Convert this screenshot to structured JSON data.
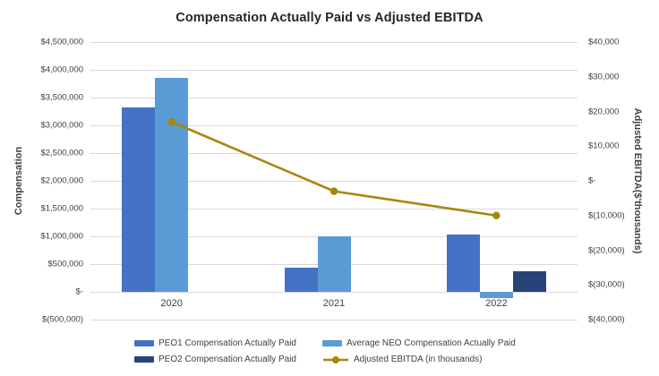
{
  "chart_data": {
    "type": "combo_bar_line",
    "title": "Compensation Actually Paid vs Adjusted EBITDA",
    "categories": [
      "2020",
      "2021",
      "2022"
    ],
    "bar_series": [
      {
        "name": "PEO1 Compensation Actually Paid",
        "color": "#4472C4",
        "axis": "left",
        "values": [
          3330000,
          430000,
          1040000
        ]
      },
      {
        "name": "Average NEO Compensation Actually Paid",
        "color": "#5B9BD5",
        "axis": "left",
        "values": [
          3850000,
          1000000,
          -120000
        ]
      },
      {
        "name": "PEO2 Compensation Actually Paid",
        "color": "#264478",
        "axis": "left",
        "values": [
          0,
          0,
          370000
        ]
      }
    ],
    "line_series": [
      {
        "name": "Adjusted EBITDA (in thousands)",
        "color": "#A8860D",
        "axis": "right",
        "values": [
          17000,
          -3000,
          -10000
        ]
      }
    ],
    "left_axis": {
      "label": "Compensation",
      "min": -500000,
      "max": 4500000,
      "step": 500000,
      "ticks": [
        "$4,500,000",
        "$4,000,000",
        "$3,500,000",
        "$3,000,000",
        "$2,500,000",
        "$2,000,000",
        "$1,500,000",
        "$1,000,000",
        "$500,000",
        "$-",
        "$(500,000)"
      ]
    },
    "right_axis": {
      "label": "Adjusted EBITDA($'thousands)",
      "min": -40000,
      "max": 40000,
      "step": 10000,
      "ticks": [
        "$40,000",
        "$30,000",
        "$20,000",
        "$10,000",
        "$-",
        "$(10,000)",
        "$(20,000)",
        "$(30,000)",
        "$(40,000)"
      ]
    },
    "grid": true,
    "legend_position": "bottom",
    "colors": {
      "background": "#FFFFFF",
      "gridline": "#D9D9D9",
      "axis_text": "#404040",
      "title_text": "#262626"
    }
  }
}
